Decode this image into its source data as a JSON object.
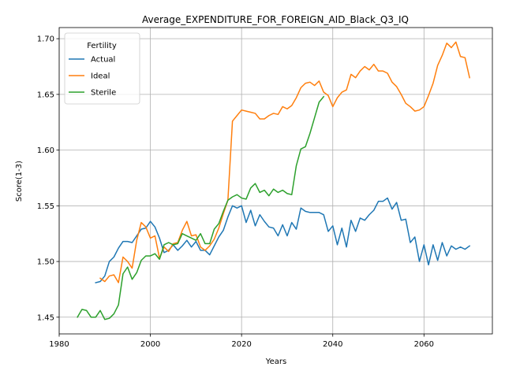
{
  "chart_data": {
    "type": "line",
    "title": "Average_EXPENDITURE_FOR_FOREIGN_AID_Black_Q3_IQ",
    "xlabel": "Years",
    "ylabel": "Score(1-3)",
    "xlim": [
      1980,
      2075
    ],
    "ylim": [
      1.435,
      1.71
    ],
    "xticks": [
      1980,
      2000,
      2020,
      2040,
      2060
    ],
    "yticks": [
      1.45,
      1.5,
      1.55,
      1.6,
      1.65,
      1.7
    ],
    "ytick_labels": [
      "1.45",
      "1.50",
      "1.55",
      "1.60",
      "1.65",
      "1.70"
    ],
    "grid": true,
    "legend": {
      "title": "Fertility",
      "placement": "top-left"
    },
    "series": [
      {
        "name": "Actual",
        "color": "#1f77b4",
        "x": [
          1988,
          1989,
          1990,
          1991,
          1992,
          1993,
          1994,
          1995,
          1996,
          1997,
          1998,
          1999,
          2000,
          2001,
          2002,
          2003,
          2004,
          2005,
          2006,
          2007,
          2008,
          2009,
          2010,
          2011,
          2012,
          2013,
          2014,
          2015,
          2016,
          2017,
          2018,
          2019,
          2020,
          2021,
          2022,
          2023,
          2024,
          2025,
          2026,
          2027,
          2028,
          2029,
          2030,
          2031,
          2032,
          2033,
          2034,
          2035,
          2036,
          2037,
          2038,
          2039,
          2040,
          2041,
          2042,
          2043,
          2044,
          2045,
          2046,
          2047,
          2048,
          2049,
          2050,
          2051,
          2052,
          2053,
          2054,
          2055,
          2056,
          2057,
          2058,
          2059,
          2060,
          2061,
          2062,
          2063,
          2064,
          2065,
          2066,
          2067,
          2068,
          2069,
          2070
        ],
        "y": [
          1.481,
          1.482,
          1.487,
          1.5,
          1.504,
          1.512,
          1.518,
          1.518,
          1.517,
          1.523,
          1.529,
          1.53,
          1.536,
          1.531,
          1.521,
          1.508,
          1.51,
          1.515,
          1.51,
          1.514,
          1.519,
          1.513,
          1.518,
          1.51,
          1.51,
          1.506,
          1.514,
          1.522,
          1.528,
          1.54,
          1.55,
          1.548,
          1.55,
          1.535,
          1.546,
          1.532,
          1.542,
          1.536,
          1.531,
          1.53,
          1.523,
          1.533,
          1.523,
          1.535,
          1.529,
          1.548,
          1.545,
          1.544,
          1.544,
          1.544,
          1.542,
          1.527,
          1.532,
          1.515,
          1.53,
          1.513,
          1.537,
          1.527,
          1.539,
          1.537,
          1.542,
          1.546,
          1.554,
          1.554,
          1.557,
          1.547,
          1.553,
          1.537,
          1.538,
          1.517,
          1.522,
          1.5,
          1.515,
          1.497,
          1.515,
          1.501,
          1.517,
          1.505,
          1.514,
          1.511,
          1.513,
          1.511,
          1.514
        ]
      },
      {
        "name": "Ideal",
        "color": "#ff7f0e",
        "x": [
          1989,
          1990,
          1991,
          1992,
          1993,
          1994,
          1995,
          1996,
          1997,
          1998,
          1999,
          2000,
          2001,
          2002,
          2003,
          2004,
          2005,
          2006,
          2007,
          2008,
          2009,
          2010,
          2011,
          2012,
          2013,
          2014,
          2015,
          2016,
          2017,
          2018,
          2019,
          2020,
          2021,
          2022,
          2023,
          2024,
          2025,
          2026,
          2027,
          2028,
          2029,
          2030,
          2031,
          2032,
          2033,
          2034,
          2035,
          2036,
          2037,
          2038,
          2039,
          2040,
          2041,
          2042,
          2043,
          2044,
          2045,
          2046,
          2047,
          2048,
          2049,
          2050,
          2051,
          2052,
          2053,
          2054,
          2055,
          2056,
          2057,
          2058,
          2059,
          2060,
          2061,
          2062,
          2063,
          2064,
          2065,
          2066,
          2067,
          2068,
          2069,
          2070
        ],
        "y": [
          1.485,
          1.482,
          1.487,
          1.488,
          1.481,
          1.504,
          1.5,
          1.494,
          1.519,
          1.535,
          1.531,
          1.521,
          1.523,
          1.503,
          1.513,
          1.509,
          1.516,
          1.517,
          1.528,
          1.536,
          1.523,
          1.524,
          1.513,
          1.51,
          1.514,
          1.52,
          1.53,
          1.543,
          1.555,
          1.626,
          1.631,
          1.636,
          1.635,
          1.634,
          1.633,
          1.628,
          1.628,
          1.631,
          1.633,
          1.632,
          1.639,
          1.637,
          1.64,
          1.647,
          1.656,
          1.66,
          1.661,
          1.658,
          1.662,
          1.652,
          1.649,
          1.639,
          1.647,
          1.652,
          1.654,
          1.668,
          1.665,
          1.671,
          1.675,
          1.672,
          1.677,
          1.671,
          1.671,
          1.669,
          1.661,
          1.657,
          1.65,
          1.642,
          1.639,
          1.635,
          1.636,
          1.639,
          1.649,
          1.66,
          1.676,
          1.685,
          1.696,
          1.692,
          1.697,
          1.684,
          1.683,
          1.665
        ]
      },
      {
        "name": "Sterile",
        "color": "#2ca02c",
        "x": [
          1984,
          1985,
          1986,
          1987,
          1988,
          1989,
          1990,
          1991,
          1992,
          1993,
          1994,
          1995,
          1996,
          1997,
          1998,
          1999,
          2000,
          2001,
          2002,
          2003,
          2004,
          2005,
          2006,
          2007,
          2008,
          2009,
          2010,
          2011,
          2012,
          2013,
          2014,
          2015,
          2016,
          2017,
          2018,
          2019,
          2020,
          2021,
          2022,
          2023,
          2024,
          2025,
          2026,
          2027,
          2028,
          2029,
          2030,
          2031,
          2032,
          2033,
          2034,
          2035,
          2036,
          2037,
          2038
        ],
        "y": [
          1.45,
          1.457,
          1.456,
          1.45,
          1.45,
          1.456,
          1.448,
          1.449,
          1.453,
          1.461,
          1.489,
          1.495,
          1.484,
          1.49,
          1.501,
          1.505,
          1.505,
          1.507,
          1.502,
          1.515,
          1.517,
          1.515,
          1.516,
          1.525,
          1.523,
          1.521,
          1.519,
          1.525,
          1.516,
          1.516,
          1.529,
          1.534,
          1.545,
          1.555,
          1.558,
          1.56,
          1.557,
          1.556,
          1.566,
          1.57,
          1.562,
          1.564,
          1.559,
          1.565,
          1.562,
          1.564,
          1.561,
          1.56,
          1.586,
          1.601,
          1.603,
          1.615,
          1.629,
          1.643,
          1.648
        ]
      }
    ]
  }
}
